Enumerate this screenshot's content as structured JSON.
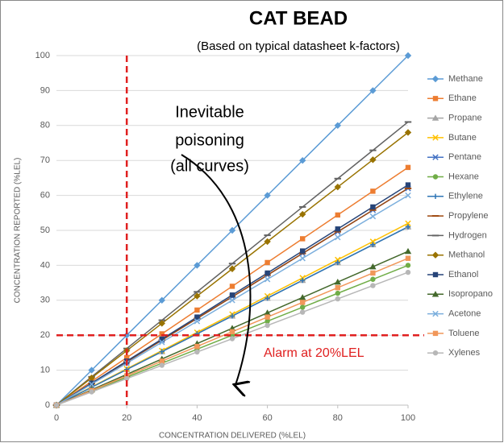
{
  "chart_data": {
    "type": "line",
    "title": "CAT BEAD",
    "subtitle": "(Based on typical datasheet k-factors)",
    "x_label": "CONCENTRATION DELIVERED (%LEL)",
    "y_label": "CONCENTRATION REPORTED (%LEL)",
    "x": [
      0,
      10,
      20,
      30,
      40,
      50,
      60,
      70,
      80,
      90,
      100
    ],
    "xlim": [
      0,
      100
    ],
    "xticks": [
      0,
      20,
      40,
      60,
      80,
      100
    ],
    "ylim": [
      0,
      100
    ],
    "yticks": [
      0,
      10,
      20,
      30,
      40,
      50,
      60,
      70,
      80,
      90,
      100
    ],
    "grid": true,
    "legend": "right",
    "annotation_poisoning": [
      "Inevitable",
      "poisoning",
      "(all curves)"
    ],
    "annotation_alarm": "Alarm at 20%LEL",
    "reference_lines": [
      {
        "axis": "x",
        "value": 20,
        "color": "#e02020"
      },
      {
        "axis": "y",
        "value": 20,
        "color": "#e02020"
      }
    ],
    "series": [
      {
        "name": "Methane",
        "color": "#5b9bd5",
        "marker": "diamond",
        "values": [
          0,
          10,
          20,
          30,
          40,
          50,
          60,
          70,
          80,
          90,
          100
        ]
      },
      {
        "name": "Ethane",
        "color": "#ed7d31",
        "marker": "square",
        "values": [
          0,
          6.8,
          13.6,
          20.4,
          27.2,
          34,
          40.8,
          47.6,
          54.4,
          61.2,
          68
        ]
      },
      {
        "name": "Propane",
        "color": "#a5a5a5",
        "marker": "triangle",
        "values": [
          0,
          5.1,
          10.2,
          15.3,
          20.4,
          25.5,
          30.6,
          35.7,
          40.8,
          45.9,
          51
        ]
      },
      {
        "name": "Butane",
        "color": "#ffc000",
        "marker": "x",
        "values": [
          0,
          5.2,
          10.4,
          15.6,
          20.8,
          26,
          31.2,
          36.4,
          41.6,
          46.8,
          52
        ]
      },
      {
        "name": "Pentane",
        "color": "#4472c4",
        "marker": "x",
        "values": [
          0,
          6.2,
          12.4,
          18.6,
          24.8,
          31,
          37.2,
          43.4,
          49.6,
          55.8,
          62
        ]
      },
      {
        "name": "Hexane",
        "color": "#70ad47",
        "marker": "circle",
        "values": [
          0,
          4,
          8,
          12,
          16,
          20,
          24,
          28,
          32,
          36,
          40
        ]
      },
      {
        "name": "Ethylene",
        "color": "#2e75b6",
        "marker": "plus",
        "values": [
          0,
          5.1,
          10.2,
          15.3,
          20.4,
          25.5,
          30.6,
          35.7,
          40.8,
          45.9,
          51
        ]
      },
      {
        "name": "Propylene",
        "color": "#9e480e",
        "marker": "dash",
        "values": [
          0,
          6.2,
          12.4,
          18.6,
          24.8,
          31,
          37.2,
          43.4,
          49.6,
          55.8,
          62
        ]
      },
      {
        "name": "Hydrogen",
        "color": "#636363",
        "marker": "dash",
        "values": [
          0,
          8.1,
          16.2,
          24.3,
          32.4,
          40.5,
          48.6,
          56.7,
          64.8,
          72.9,
          81
        ]
      },
      {
        "name": "Methanol",
        "color": "#997300",
        "marker": "diamond",
        "values": [
          0,
          7.8,
          15.6,
          23.4,
          31.2,
          39,
          46.8,
          54.6,
          62.4,
          70.2,
          78
        ]
      },
      {
        "name": "Ethanol",
        "color": "#264478",
        "marker": "square",
        "values": [
          0,
          6.3,
          12.6,
          18.9,
          25.2,
          31.5,
          37.8,
          44.1,
          50.4,
          56.7,
          63
        ]
      },
      {
        "name": "Isopropano",
        "color": "#43682b",
        "marker": "triangle",
        "values": [
          0,
          4.4,
          8.8,
          13.2,
          17.6,
          22,
          26.4,
          30.8,
          35.2,
          39.6,
          44
        ]
      },
      {
        "name": "Acetone",
        "color": "#7cafdd",
        "marker": "x",
        "values": [
          0,
          6,
          12,
          18,
          24,
          30,
          36,
          42,
          48,
          54,
          60
        ]
      },
      {
        "name": "Toluene",
        "color": "#f1975a",
        "marker": "square",
        "values": [
          0,
          4.2,
          8.4,
          12.6,
          16.8,
          21,
          25.2,
          29.4,
          33.6,
          37.8,
          42
        ]
      },
      {
        "name": "Xylenes",
        "color": "#b7b7b7",
        "marker": "circle",
        "values": [
          0,
          3.8,
          7.6,
          11.4,
          15.2,
          19,
          22.8,
          26.6,
          30.4,
          34.2,
          38
        ]
      }
    ]
  }
}
